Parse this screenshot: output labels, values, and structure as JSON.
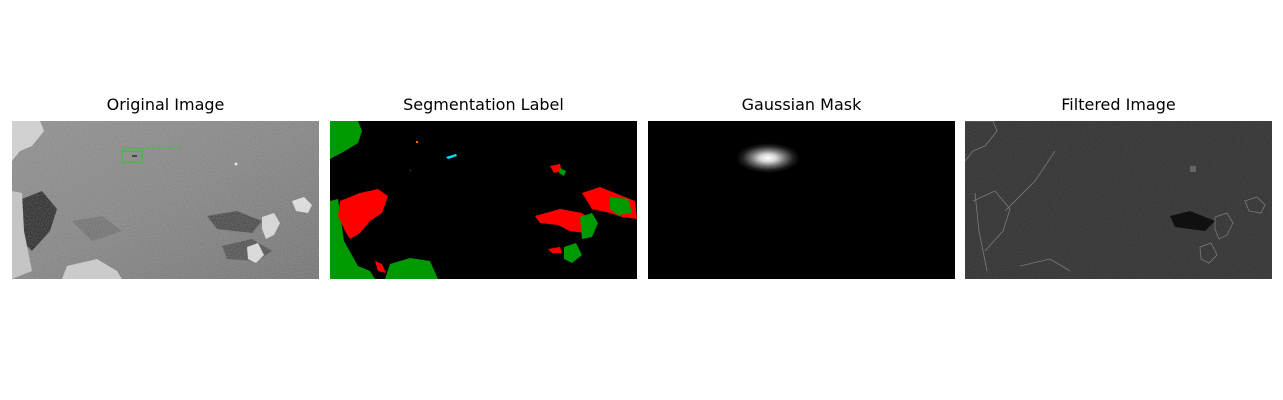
{
  "panels": [
    {
      "title": "Original Image"
    },
    {
      "title": "Segmentation Label"
    },
    {
      "title": "Gaussian Mask"
    },
    {
      "title": "Filtered Image"
    }
  ],
  "annotation": {
    "box_color": "#22cc22"
  },
  "segmentation_colors": {
    "background": "#000000",
    "red_class": "#ff0000",
    "green_class": "#009900",
    "cyan_class": "#00e5ff",
    "orange_class": "#ff6a00"
  }
}
